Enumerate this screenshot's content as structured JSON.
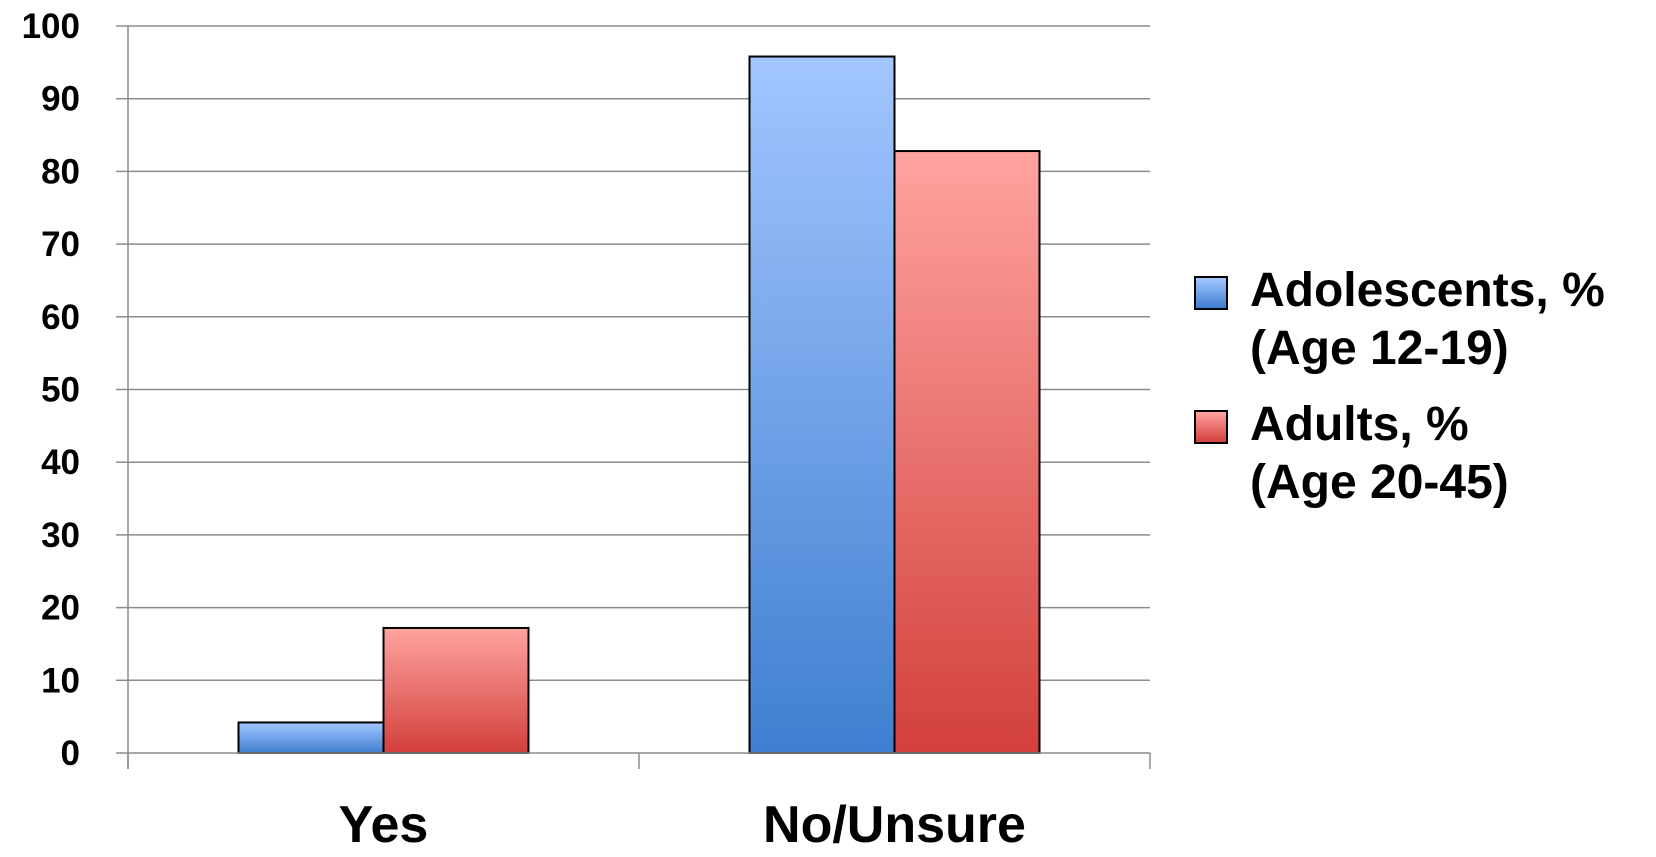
{
  "chart_data": {
    "type": "bar",
    "categories": [
      "Yes",
      "No/Unsure"
    ],
    "series": [
      {
        "name_lines": [
          "Adolescents, %",
          "(Age 12-19)"
        ],
        "values": [
          4.2,
          95.8
        ],
        "color": "#4a86d6"
      },
      {
        "name_lines": [
          "Adults, %",
          "(Age 20-45)"
        ],
        "values": [
          17.2,
          82.8
        ],
        "color": "#d9534f"
      }
    ],
    "ylim": [
      0,
      100
    ],
    "yticks": [
      0,
      10,
      20,
      30,
      40,
      50,
      60,
      70,
      80,
      90,
      100
    ],
    "grid": true,
    "legend_position": "right"
  }
}
